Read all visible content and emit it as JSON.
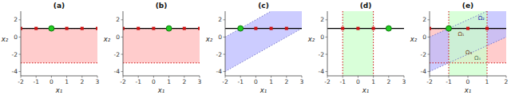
{
  "chart_data": [
    {
      "type": "scatter",
      "title": "(a)",
      "x_label": "x₁",
      "y_label": "x₂",
      "xlim": [
        -2,
        3
      ],
      "ylim": [
        -4.5,
        3
      ],
      "xticks": [
        -2,
        -1,
        0,
        1,
        2,
        3
      ],
      "yticks": [
        -4,
        -2,
        0,
        2
      ],
      "line_y": 1.0,
      "bands": [
        {
          "kind": "horizontal",
          "range": [
            -3.0,
            1.0
          ],
          "color": "#ffbbbb",
          "border_color": "#cc1111"
        }
      ],
      "series": [
        {
          "marker": "square",
          "color": "#cc1111",
          "x": [
            -2,
            -1,
            1,
            2,
            3
          ],
          "values": [
            1.0,
            1.0,
            1.0,
            1.0,
            1.0
          ]
        },
        {
          "marker": "circle",
          "color": "#22cc22",
          "x": [
            0
          ],
          "values": [
            1.0
          ]
        }
      ]
    },
    {
      "type": "scatter",
      "title": "(b)",
      "x_label": "x₁",
      "y_label": "x₂",
      "xlim": [
        -2,
        3
      ],
      "ylim": [
        -4.5,
        3
      ],
      "xticks": [
        -2,
        -1,
        0,
        1,
        2,
        3
      ],
      "yticks": [
        -4,
        -2,
        0,
        2
      ],
      "line_y": 1.0,
      "bands": [
        {
          "kind": "horizontal",
          "range": [
            -3.0,
            1.0
          ],
          "color": "#ffbbbb",
          "border_color": "#cc1111"
        }
      ],
      "series": [
        {
          "marker": "square",
          "color": "#cc1111",
          "x": [
            -2,
            -1,
            0,
            2,
            3
          ],
          "values": [
            1.0,
            1.0,
            1.0,
            1.0,
            1.0
          ]
        },
        {
          "marker": "circle",
          "color": "#22cc22",
          "x": [
            1
          ],
          "values": [
            1.0
          ]
        }
      ]
    },
    {
      "type": "scatter",
      "title": "(c)",
      "x_label": "x₁",
      "y_label": "x₂",
      "xlim": [
        -2,
        3
      ],
      "ylim": [
        -4.5,
        3
      ],
      "xticks": [
        -2,
        -1,
        0,
        1,
        2,
        3
      ],
      "yticks": [
        -4,
        -2,
        0,
        2
      ],
      "line_y": 1.0,
      "bands": [
        {
          "kind": "diagonal",
          "range": [
            -2,
            2
          ],
          "color": "#bbbbff",
          "border_color": "#7777cc"
        }
      ],
      "series": [
        {
          "marker": "square",
          "color": "#cc1111",
          "x": [
            0,
            1,
            2
          ],
          "values": [
            1.0,
            1.0,
            1.0
          ]
        },
        {
          "marker": "circle",
          "color": "#22cc22",
          "x": [
            -1
          ],
          "values": [
            1.0
          ]
        }
      ]
    },
    {
      "type": "scatter",
      "title": "(d)",
      "x_label": "x₁",
      "y_label": "x₂",
      "xlim": [
        -2,
        3
      ],
      "ylim": [
        -4.5,
        3
      ],
      "xticks": [
        -2,
        -1,
        0,
        1,
        2,
        3
      ],
      "yticks": [
        -4,
        -2,
        0,
        2
      ],
      "line_y": 1.0,
      "bands": [
        {
          "kind": "vertical",
          "range": [
            -1,
            1
          ],
          "color": "#ccffcc",
          "border_color": "#cc1111"
        }
      ],
      "series": [
        {
          "marker": "square",
          "color": "#cc1111",
          "x": [
            -1,
            0,
            1
          ],
          "values": [
            1.0,
            1.0,
            1.0
          ]
        },
        {
          "marker": "circle",
          "color": "#22cc22",
          "x": [
            2
          ],
          "values": [
            1.0
          ]
        }
      ]
    },
    {
      "type": "scatter",
      "title": "(e)",
      "x_label": "x₁",
      "y_label": "x₂",
      "xlim": [
        -2,
        2
      ],
      "ylim": [
        -4.5,
        3
      ],
      "xticks": [
        -2,
        -1,
        0,
        1,
        2
      ],
      "yticks": [
        -4,
        -2,
        0,
        2
      ],
      "line_y": 1.0,
      "bands": [
        {
          "kind": "horizontal",
          "range": [
            -3.0,
            1.0
          ],
          "color": "#ffbbbb",
          "border_color": "#cc1111"
        },
        {
          "kind": "diagonal",
          "range": [
            -2,
            2
          ],
          "color": "#bbbbff",
          "border_color": "#7777cc"
        },
        {
          "kind": "vertical",
          "range": [
            -1,
            1
          ],
          "color": "#ccffcc",
          "border_color": "#cc1111"
        }
      ],
      "series": [
        {
          "marker": "square",
          "color": "#cc1111",
          "x": [
            -2,
            0,
            1
          ],
          "values": [
            1.0,
            1.0,
            1.0
          ]
        },
        {
          "marker": "circle",
          "color": "#22cc22",
          "x": [
            -1
          ],
          "values": [
            1.0
          ]
        }
      ],
      "annotations": [
        {
          "text": "Ω₂",
          "x": 0.7,
          "y": 2.2,
          "color": "#2222aa"
        },
        {
          "text": "Ω₁",
          "x": -0.35,
          "y": 0.3,
          "color": "#774422"
        },
        {
          "text": "Ω₃",
          "x": 0.05,
          "y": -1.8,
          "color": "#774422"
        },
        {
          "text": "Ω₄",
          "x": 0.5,
          "y": -2.5,
          "color": "#557755"
        }
      ]
    }
  ]
}
